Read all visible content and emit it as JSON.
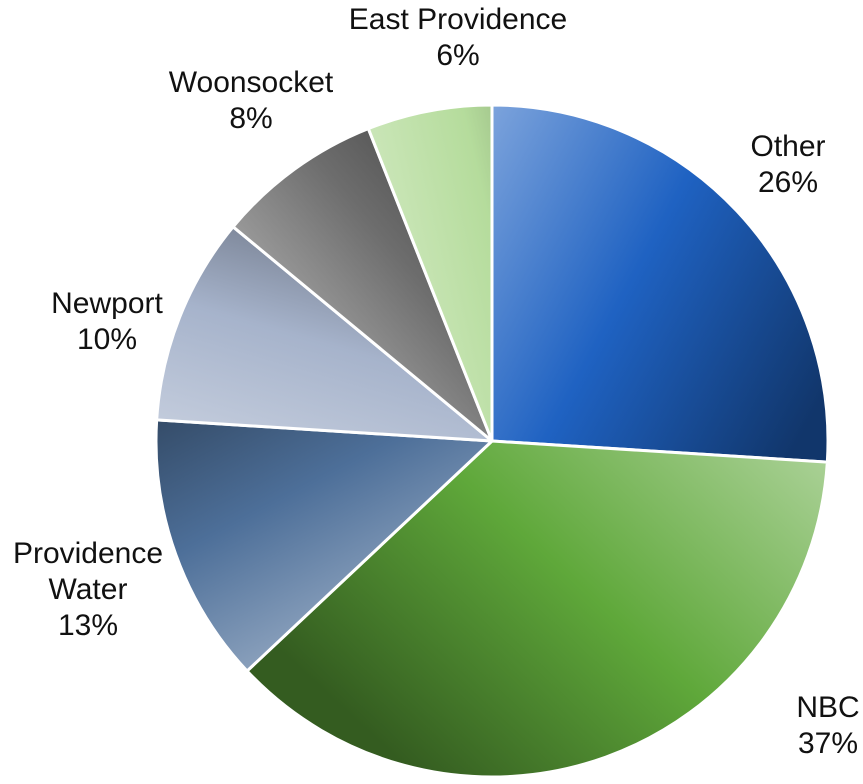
{
  "chart_data": {
    "type": "pie",
    "title": "",
    "start": "12 o'clock",
    "direction": "clockwise",
    "slices": [
      {
        "name": "Other",
        "value": 26,
        "label": "26%",
        "color": "#1f62c2"
      },
      {
        "name": "NBC",
        "value": 37,
        "label": "37%",
        "color": "#5fa83a"
      },
      {
        "name_lines": [
          "Providence",
          "Water"
        ],
        "name": "Providence Water",
        "value": 13,
        "label": "13%",
        "color": "#4d6f99"
      },
      {
        "name": "Newport",
        "value": 10,
        "label": "10%",
        "color": "#a6b3cb"
      },
      {
        "name": "Woonsocket",
        "value": 8,
        "label": "8%",
        "color": "#6d6d6d"
      },
      {
        "name": "East Providence",
        "value": 6,
        "label": "6%",
        "color": "#b5dc9c"
      }
    ]
  }
}
